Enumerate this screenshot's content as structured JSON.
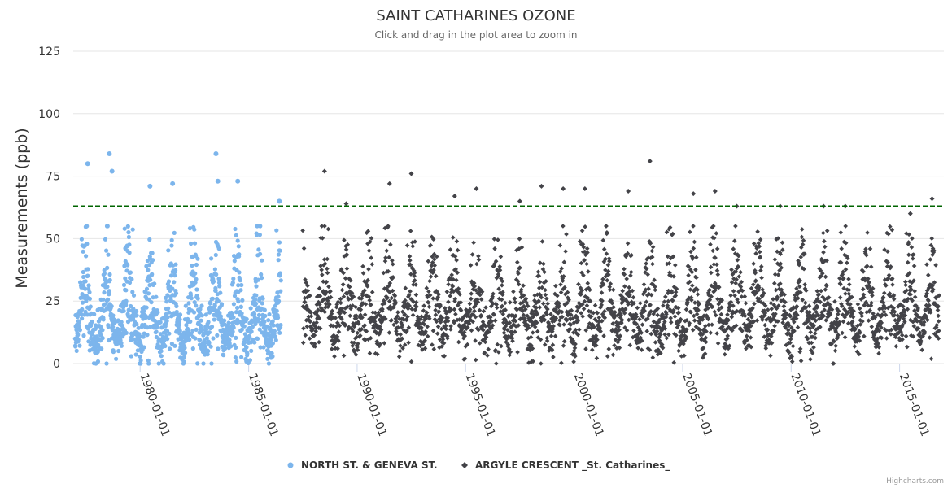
{
  "chart_data": {
    "type": "scatter",
    "title": "SAINT CATHARINES OZONE",
    "subtitle": "Click and drag in the plot area to zoom in",
    "ylabel": "Measurements (ppb)",
    "xlabel": "",
    "x_axis_type": "datetime",
    "xlim": [
      "1976-12-01",
      "2017-01-15"
    ],
    "ylim": [
      0,
      125
    ],
    "y_ticks": [
      0,
      25,
      50,
      75,
      100,
      125
    ],
    "x_ticks": [
      "1980-01-01",
      "1985-01-01",
      "1990-01-01",
      "1995-01-01",
      "2000-01-01",
      "2005-01-01",
      "2010-01-01",
      "2015-01-01"
    ],
    "grid": "horizontal",
    "legend_position": "bottom-center",
    "reference_line": {
      "value": 63,
      "style": "dashed",
      "color": "#006400"
    },
    "series": [
      {
        "name": "NORTH ST. & GENEVA ST.",
        "color": "#7cb5ec",
        "marker": "circle",
        "date_range": [
          "1977-01-01",
          "1986-06-30"
        ],
        "typical_range": [
          0,
          50
        ],
        "peaks": [
          {
            "x": "1977-08-01",
            "y": 80
          },
          {
            "x": "1978-08-01",
            "y": 84
          },
          {
            "x": "1978-09-15",
            "y": 77
          },
          {
            "x": "1980-06-15",
            "y": 71
          },
          {
            "x": "1981-07-01",
            "y": 72
          },
          {
            "x": "1983-07-01",
            "y": 84
          },
          {
            "x": "1983-08-01",
            "y": 73
          },
          {
            "x": "1984-07-01",
            "y": 73
          },
          {
            "x": "1986-06-01",
            "y": 65
          }
        ]
      },
      {
        "name": "ARGYLE CRESCENT _St. Catharines_",
        "color": "#434348",
        "marker": "diamond",
        "date_range": [
          "1987-07-01",
          "2016-10-31"
        ],
        "typical_range": [
          0,
          50
        ],
        "peaks": [
          {
            "x": "1988-07-01",
            "y": 77
          },
          {
            "x": "1989-07-01",
            "y": 64
          },
          {
            "x": "1991-07-01",
            "y": 72
          },
          {
            "x": "1992-07-01",
            "y": 76
          },
          {
            "x": "1994-07-01",
            "y": 67
          },
          {
            "x": "1995-07-01",
            "y": 70
          },
          {
            "x": "1997-07-01",
            "y": 65
          },
          {
            "x": "1998-07-01",
            "y": 71
          },
          {
            "x": "1999-07-01",
            "y": 70
          },
          {
            "x": "2000-07-01",
            "y": 70
          },
          {
            "x": "2002-07-01",
            "y": 69
          },
          {
            "x": "2003-07-01",
            "y": 81
          },
          {
            "x": "2005-07-01",
            "y": 68
          },
          {
            "x": "2006-07-01",
            "y": 69
          },
          {
            "x": "2007-07-01",
            "y": 63
          },
          {
            "x": "2009-07-01",
            "y": 63
          },
          {
            "x": "2011-07-01",
            "y": 63
          },
          {
            "x": "2012-07-01",
            "y": 63
          },
          {
            "x": "2015-07-01",
            "y": 60
          },
          {
            "x": "2016-07-01",
            "y": 66
          }
        ]
      }
    ],
    "credits": "Highcharts.com"
  }
}
